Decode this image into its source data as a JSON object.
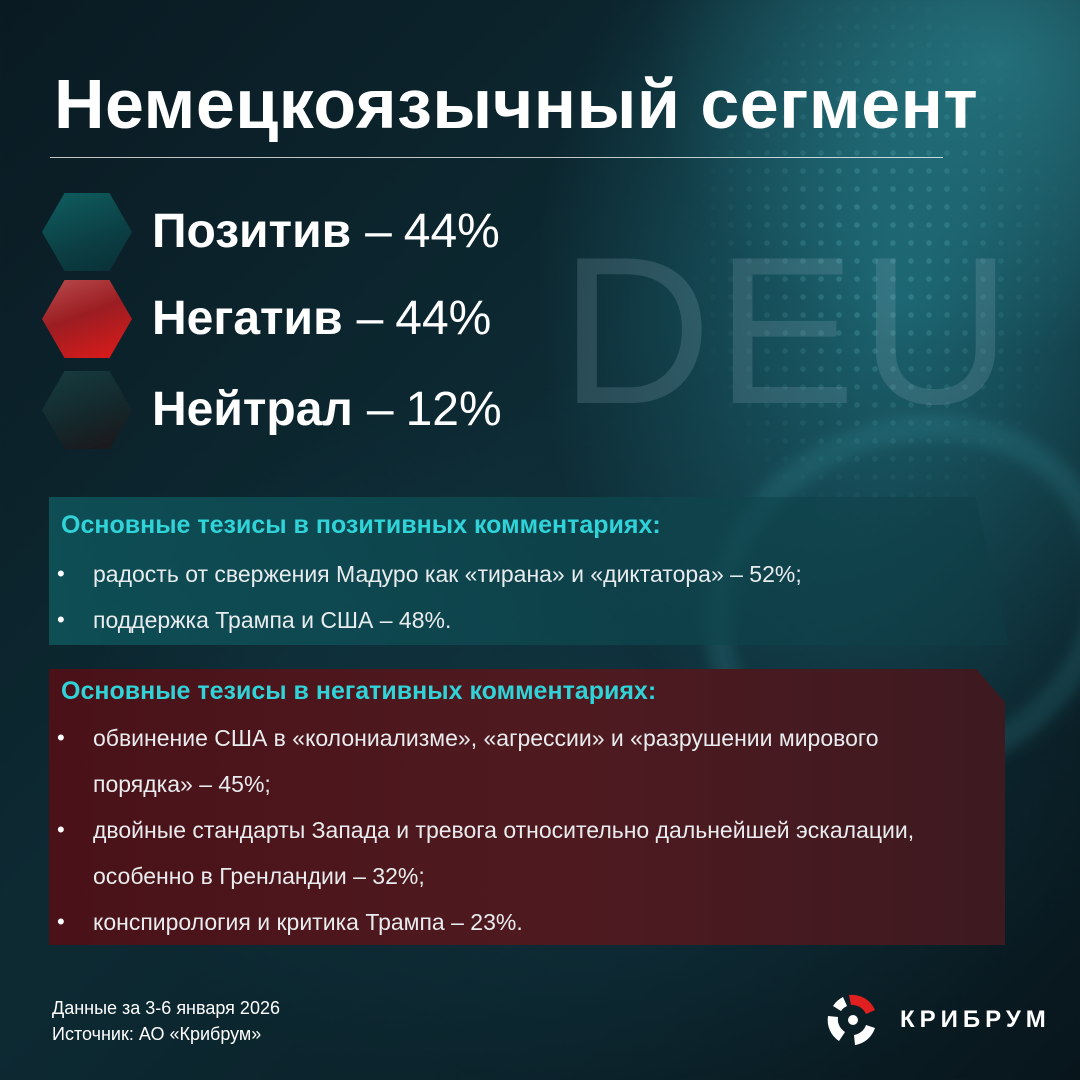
{
  "title": "Немецкоязычный сегмент",
  "watermark": "DEU",
  "stats": [
    {
      "label": "Позитив",
      "separator": "–",
      "value": "44%",
      "color": "#0f5e60"
    },
    {
      "label": "Негатив",
      "separator": "–",
      "value": "44%",
      "color": "#e01a1a"
    },
    {
      "label": "Нейтрал",
      "separator": "–",
      "value": "12%",
      "color": "#14282c"
    }
  ],
  "positive": {
    "heading": "Основные тезисы в позитивных комментариях:",
    "items": [
      "радость от свержения Мадуро как «тирана» и «диктатора» – 52%;",
      "поддержка Трампа и США – 48%."
    ]
  },
  "negative": {
    "heading": "Основные тезисы в негативных комментариях:",
    "items": [
      "обвинение США в «колониализме», «агрессии» и «разрушении мирового",
      "порядка» – 45%;",
      "двойные стандарты Запада и тревога относительно дальнейшей эскалации,",
      "особенно в Гренландии – 32%;",
      "конспирология и критика Трампа – 23%."
    ]
  },
  "footer": {
    "period": "Данные за 3-6 января 2026",
    "source": "Источник: АО «Крибрум»"
  },
  "brand": {
    "name": "КРИБРУМ",
    "logo_icon": "kribrum-logo-icon"
  },
  "colors": {
    "accent_cyan": "#2fd3d8",
    "positive_panel": "#0f555c",
    "negative_panel": "#4a1218",
    "logo_red": "#e02020"
  }
}
